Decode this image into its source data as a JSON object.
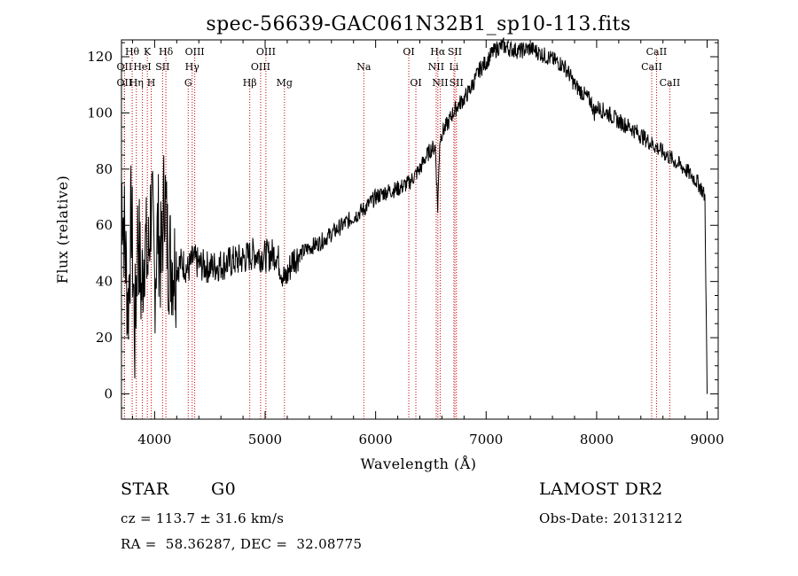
{
  "chart_data": {
    "type": "line",
    "title": "spec-56639-GAC061N32B1_sp10-113.fits",
    "xlabel": "Wavelength (Å)",
    "ylabel": "Flux (relative)",
    "xlim": [
      3700,
      9100
    ],
    "ylim": [
      -9,
      126
    ],
    "xticks": [
      4000,
      5000,
      6000,
      7000,
      8000,
      9000
    ],
    "yticks": [
      0,
      20,
      40,
      60,
      80,
      100,
      120
    ],
    "grid": false,
    "series": [
      {
        "x": [
          3700,
          3730,
          3760,
          3790,
          3820,
          3850,
          3880,
          3910,
          3940,
          3970,
          4000,
          4030,
          4060,
          4090,
          4120,
          4150,
          4200,
          4250,
          4300,
          4350,
          4400,
          4500,
          4600,
          4700,
          4800,
          4900,
          5000,
          5100,
          5180,
          5250,
          5400,
          5500,
          5600,
          5700,
          5800,
          5900,
          6000,
          6100,
          6200,
          6300,
          6400,
          6450,
          6500,
          6540,
          6562,
          6580,
          6600,
          6650,
          6700,
          6750,
          6800,
          6850,
          6900,
          6950,
          7000,
          7050,
          7100,
          7150,
          7200,
          7300,
          7400,
          7500,
          7600,
          7700,
          7750,
          7800,
          7850,
          7900,
          7950,
          7980,
          8000,
          8050,
          8100,
          8200,
          8300,
          8400,
          8500,
          8600,
          8700,
          8800,
          8900,
          8950,
          8980,
          9000
        ],
        "y": [
          75,
          55,
          30,
          65,
          20,
          60,
          35,
          55,
          45,
          70,
          40,
          60,
          45,
          75,
          50,
          48,
          45,
          47,
          44,
          48,
          46,
          45,
          46,
          47,
          48,
          50,
          49,
          50,
          40,
          48,
          52,
          54,
          57,
          60,
          63,
          66,
          70,
          72,
          73,
          75,
          80,
          84,
          87,
          88,
          66,
          90,
          93,
          96,
          100,
          103,
          105,
          108,
          112,
          116,
          118,
          121,
          123,
          124,
          123,
          122,
          123,
          121,
          119,
          117,
          114,
          110,
          108,
          106,
          104,
          100,
          102,
          101,
          100,
          97,
          95,
          92,
          89,
          86,
          83,
          80,
          76,
          73,
          70,
          0
        ]
      }
    ],
    "lines_top": [
      {
        "text": "Hθ",
        "x": 3797
      },
      {
        "text": "K",
        "x": 3934
      },
      {
        "text": "Hδ",
        "x": 4102
      },
      {
        "text": "OIII",
        "x": 4363
      },
      {
        "text": "OIII",
        "x": 5007
      },
      {
        "text": "OI",
        "x": 6300
      },
      {
        "text": "Hα",
        "x": 6563
      },
      {
        "text": "SII",
        "x": 6717
      },
      {
        "text": "CaII",
        "x": 8542
      }
    ],
    "lines_mid": [
      {
        "text": "OII",
        "x": 3727
      },
      {
        "text": "HeI",
        "x": 3889
      },
      {
        "text": "SII",
        "x": 4072
      },
      {
        "text": "Hγ",
        "x": 4340
      },
      {
        "text": "OIII",
        "x": 4959
      },
      {
        "text": "Na",
        "x": 5893
      },
      {
        "text": "NII",
        "x": 6548
      },
      {
        "text": "Li",
        "x": 6708
      },
      {
        "text": "CaII",
        "x": 8498
      }
    ],
    "lines_bot": [
      {
        "text": "OII",
        "x": 3727
      },
      {
        "text": "Hη",
        "x": 3835
      },
      {
        "text": "H",
        "x": 3969
      },
      {
        "text": "G",
        "x": 4304
      },
      {
        "text": "Hβ",
        "x": 4861
      },
      {
        "text": "Mg",
        "x": 5175
      },
      {
        "text": "OI",
        "x": 6364
      },
      {
        "text": "NII",
        "x": 6584
      },
      {
        "text": "SII",
        "x": 6731
      },
      {
        "text": "CaII",
        "x": 8662
      }
    ]
  },
  "info": {
    "class": "STAR",
    "subclass": "G0",
    "survey": "LAMOST DR2",
    "cz": "cz = 113.7 ± 31.6 km/s",
    "obs_date": "Obs-Date: 20131212",
    "radec": "RA =  58.36287, DEC =  32.08775"
  },
  "colors": {
    "spectrum": "#000000",
    "line_markers": "#cc0000",
    "axes": "#000000"
  }
}
